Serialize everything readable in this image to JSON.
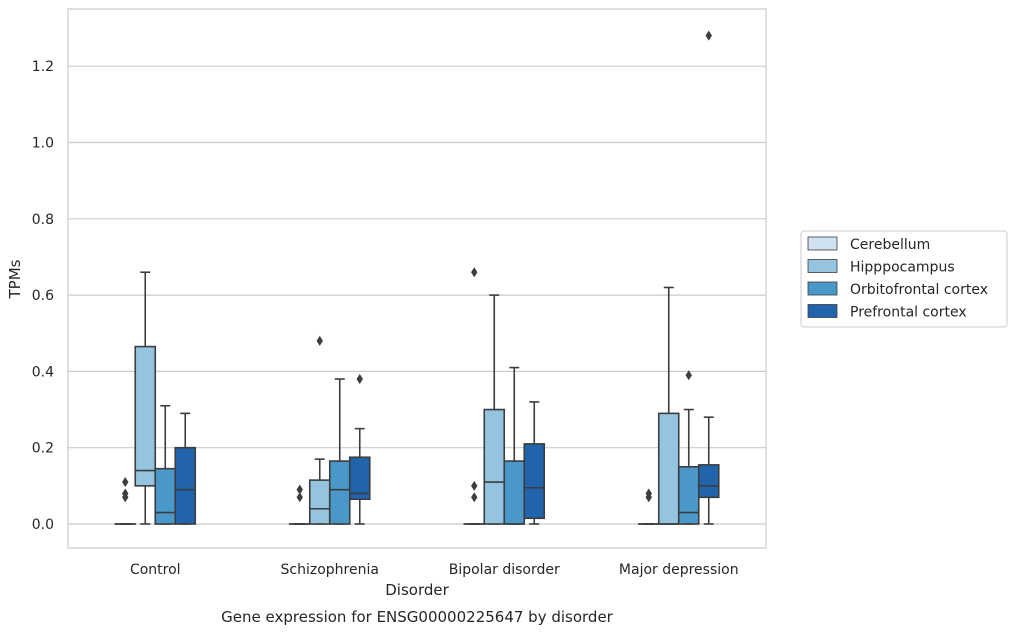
{
  "chart_data": {
    "type": "box",
    "title": "",
    "caption": "Gene expression for ENSG00000225647 by disorder",
    "xlabel": "Disorder",
    "ylabel": "TPMs",
    "ylim": [
      -0.06,
      1.35
    ],
    "yticks": [
      "0.0",
      "0.2",
      "0.4",
      "0.6",
      "0.8",
      "1.0",
      "1.2"
    ],
    "grid": "horizontal",
    "legend_position": "right",
    "categories": [
      "Control",
      "Schizophrenia",
      "Bipolar disorder",
      "Major depression"
    ],
    "series": [
      {
        "name": "Cerebellum",
        "color": "#d0e1f2",
        "boxes": [
          {
            "min": 0,
            "q1": 0,
            "median": 0,
            "q3": 0,
            "max": 0,
            "outliers": [
              0.07,
              0.08,
              0.11
            ]
          },
          {
            "min": 0,
            "q1": 0,
            "median": 0,
            "q3": 0,
            "max": 0,
            "outliers": [
              0.07,
              0.09
            ]
          },
          {
            "min": 0,
            "q1": 0,
            "median": 0,
            "q3": 0,
            "max": 0,
            "outliers": [
              0.07,
              0.1,
              0.66
            ]
          },
          {
            "min": 0,
            "q1": 0,
            "median": 0,
            "q3": 0,
            "max": 0,
            "outliers": [
              0.07,
              0.08
            ]
          }
        ]
      },
      {
        "name": "Hipppocampus",
        "color": "#94c4df",
        "boxes": [
          {
            "min": 0,
            "q1": 0.1,
            "median": 0.14,
            "q3": 0.465,
            "max": 0.66,
            "outliers": []
          },
          {
            "min": 0,
            "q1": 0,
            "median": 0.04,
            "q3": 0.115,
            "max": 0.17,
            "outliers": [
              0.48
            ]
          },
          {
            "min": 0,
            "q1": 0,
            "median": 0.11,
            "q3": 0.3,
            "max": 0.6,
            "outliers": []
          },
          {
            "min": 0,
            "q1": 0,
            "median": 0,
            "q3": 0.29,
            "max": 0.62,
            "outliers": []
          }
        ]
      },
      {
        "name": "Orbitofrontal cortex",
        "color": "#4a98c9",
        "boxes": [
          {
            "min": 0,
            "q1": 0,
            "median": 0.03,
            "q3": 0.145,
            "max": 0.31,
            "outliers": []
          },
          {
            "min": 0,
            "q1": 0,
            "median": 0.09,
            "q3": 0.165,
            "max": 0.38,
            "outliers": []
          },
          {
            "min": 0,
            "q1": 0,
            "median": 0,
            "q3": 0.165,
            "max": 0.41,
            "outliers": []
          },
          {
            "min": 0,
            "q1": 0,
            "median": 0.03,
            "q3": 0.15,
            "max": 0.3,
            "outliers": [
              0.39
            ]
          }
        ]
      },
      {
        "name": "Prefrontal cortex",
        "color": "#2164ab",
        "boxes": [
          {
            "min": 0,
            "q1": 0,
            "median": 0.09,
            "q3": 0.2,
            "max": 0.29,
            "outliers": []
          },
          {
            "min": 0,
            "q1": 0.065,
            "median": 0.08,
            "q3": 0.175,
            "max": 0.25,
            "outliers": [
              0.38
            ]
          },
          {
            "min": 0,
            "q1": 0.015,
            "median": 0.095,
            "q3": 0.21,
            "max": 0.32,
            "outliers": []
          },
          {
            "min": 0,
            "q1": 0.07,
            "median": 0.1,
            "q3": 0.155,
            "max": 0.28,
            "outliers": [
              1.28
            ]
          }
        ]
      }
    ]
  }
}
